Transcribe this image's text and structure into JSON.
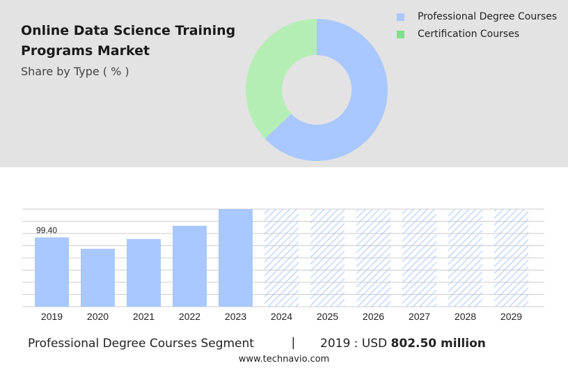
{
  "title": "Online Data Science Training Programs Market",
  "subtitle": "Share by Type ( % )",
  "colors": {
    "professional": "#a8c8ff",
    "certification": "#b4eeb4",
    "certification_legend": "#7ee08a",
    "forecast_hatch": "#a8c8ff",
    "grid": "#cccccc"
  },
  "chart_data": [
    {
      "type": "pie",
      "donut": true,
      "title": "Share by Type ( % )",
      "series": [
        {
          "name": "Professional Degree Courses",
          "value": 63
        },
        {
          "name": "Certification Courses",
          "value": 37
        }
      ],
      "legend_position": "top-right"
    },
    {
      "type": "bar",
      "categories": [
        "2019",
        "2020",
        "2021",
        "2022",
        "2023",
        "2024",
        "2025",
        "2026",
        "2027",
        "2028",
        "2029"
      ],
      "values": [
        99.4,
        83,
        97,
        116,
        140,
        null,
        null,
        null,
        null,
        null,
        null
      ],
      "forecast_categories": [
        "2024",
        "2025",
        "2026",
        "2027",
        "2028",
        "2029"
      ],
      "data_labels": [
        "99.40",
        "",
        "",
        "",
        "",
        "",
        "",
        "",
        "",
        "",
        ""
      ],
      "ylim": [
        0,
        140
      ],
      "grid": true
    }
  ],
  "footer": {
    "segment": "Professional Degree Courses Segment",
    "separator": "|",
    "year_label": "2019 : USD ",
    "value": "802.50 million",
    "url": "www.technavio.com"
  }
}
